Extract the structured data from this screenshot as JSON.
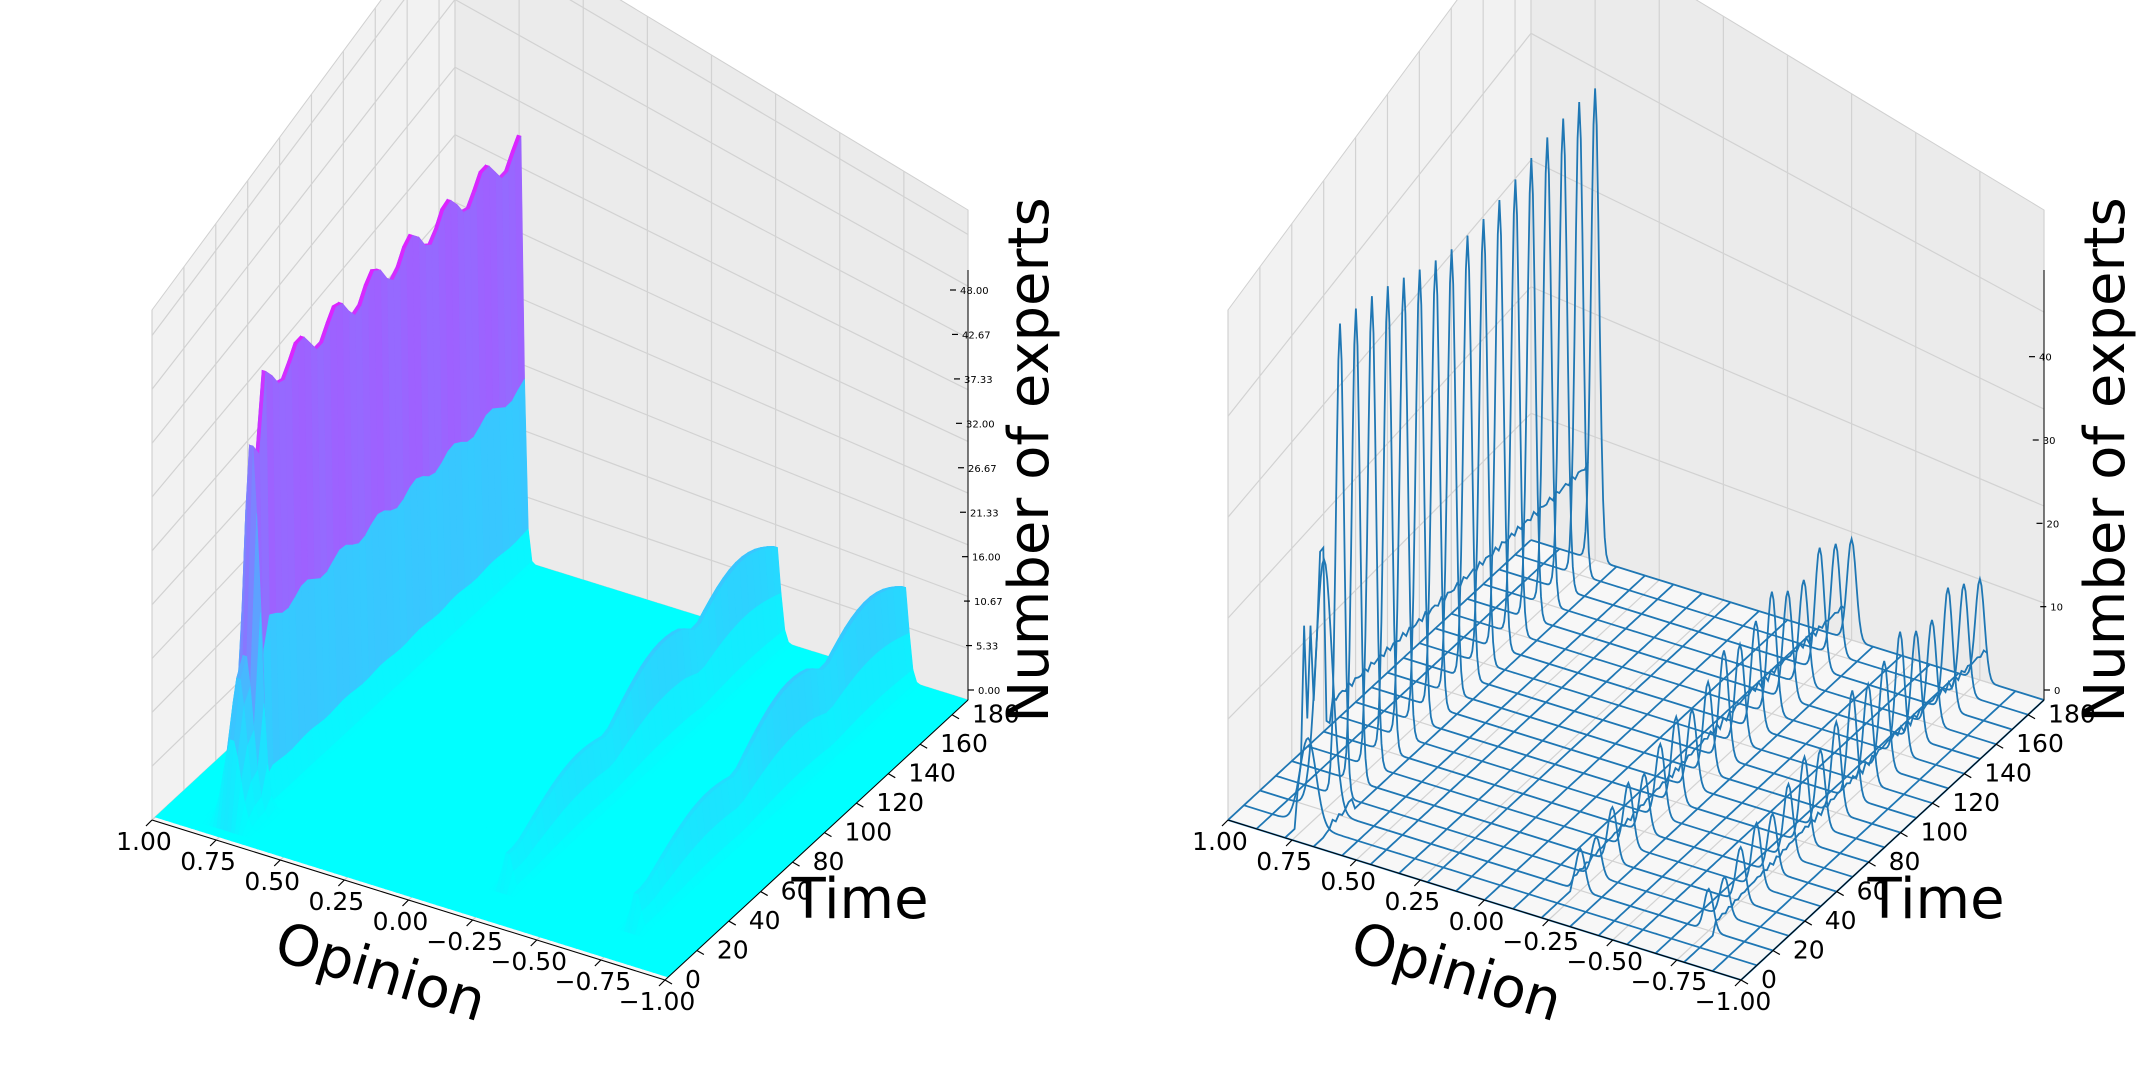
{
  "chart_data": [
    {
      "type": "surface",
      "title": "",
      "xlabel": "Opinion",
      "ylabel": "Time",
      "zlabel": "Number of experts",
      "colormap": "cool",
      "colors": {
        "low": "#00ffff",
        "high": "#ff00ff"
      },
      "x_ticks": [
        "1.00",
        "0.75",
        "0.50",
        "0.25",
        "0.00",
        "−0.25",
        "−0.50",
        "−0.75",
        "−1.00"
      ],
      "y_ticks": [
        "0",
        "20",
        "40",
        "60",
        "80",
        "100",
        "120",
        "140",
        "160",
        "180"
      ],
      "z_ticks": [
        "0.00",
        "5.33",
        "10.67",
        "16.00",
        "21.33",
        "26.67",
        "32.00",
        "37.33",
        "42.67",
        "48.00"
      ],
      "xlim": [
        1.0,
        -1.0
      ],
      "ylim": [
        0,
        190
      ],
      "zlim": [
        0,
        48
      ],
      "grid": true,
      "features": [
        {
          "opinion_center": 0.75,
          "time_range": [
            10,
            190
          ],
          "peak": 45,
          "early_peak": 28,
          "early_time_end": 20
        },
        {
          "opinion_center": -0.25,
          "time_range": [
            20,
            190
          ],
          "peak": 12
        },
        {
          "opinion_center": -0.75,
          "time_range": [
            20,
            190
          ],
          "peak": 12
        }
      ]
    },
    {
      "type": "wireframe",
      "title": "",
      "xlabel": "Opinion",
      "ylabel": "Time",
      "zlabel": "Number of experts",
      "color": "#1f77b4",
      "x_ticks": [
        "1.00",
        "0.75",
        "0.50",
        "0.25",
        "0.00",
        "−0.25",
        "−0.50",
        "−0.75",
        "−1.00"
      ],
      "y_ticks": [
        "0",
        "20",
        "40",
        "60",
        "80",
        "100",
        "120",
        "140",
        "160",
        "180"
      ],
      "z_ticks": [
        "0",
        "10",
        "20",
        "30",
        "40"
      ],
      "xlim": [
        1.0,
        -1.0
      ],
      "ylim": [
        0,
        190
      ],
      "zlim": [
        0,
        48
      ],
      "grid": true,
      "features": [
        {
          "opinion_center": 0.75,
          "time_range": [
            10,
            190
          ],
          "peak": 45,
          "early_peak": 28,
          "early_time_end": 20
        },
        {
          "opinion_center": -0.25,
          "time_range": [
            20,
            190
          ],
          "peak": 12
        },
        {
          "opinion_center": -0.75,
          "time_range": [
            20,
            190
          ],
          "peak": 12
        }
      ]
    }
  ]
}
